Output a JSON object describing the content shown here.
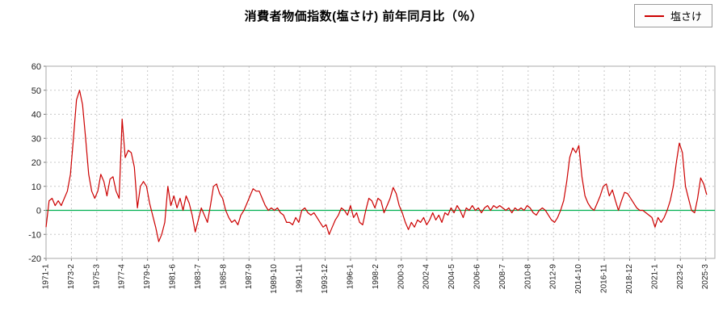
{
  "title": "消費者物価指数(塩さけ) 前年同月比（％）",
  "legend": {
    "label": "塩さけ"
  },
  "colors": {
    "series": "#cc0000",
    "zero_line": "#00b050",
    "grid": "#c8c8c8",
    "axis_border": "#aaaaaa",
    "background": "#ffffff",
    "text": "#222222"
  },
  "chart_data": {
    "type": "line",
    "title": "消費者物価指数(塩さけ) 前年同月比（％）",
    "series_name": "塩さけ",
    "unit": "%",
    "ylim": [
      -20,
      60
    ],
    "y_ticks": [
      60,
      50,
      40,
      30,
      20,
      10,
      0,
      -10,
      -20
    ],
    "x_tick_labels": [
      "1971-1",
      "1973-2",
      "1975-3",
      "1977-4",
      "1979-5",
      "1981-6",
      "1983-7",
      "1985-8",
      "1987-9",
      "1989-10",
      "1991-11",
      "1993-12",
      "1996-1",
      "1998-2",
      "2000-3",
      "2002-4",
      "2004-5",
      "2006-6",
      "2008-7",
      "2010-8",
      "2012-9",
      "2014-10",
      "2016-11",
      "2018-12",
      "2021-1",
      "2023-2",
      "2025-3"
    ],
    "x_tick_interval_months": 25,
    "x_start": "1971-01",
    "x_interval_months": 3,
    "grid": true,
    "legend_position": "top-right",
    "zero_line": true,
    "values": [
      -7,
      4,
      5,
      2,
      4,
      2,
      5,
      8,
      15,
      30,
      46,
      50,
      44,
      30,
      15,
      8,
      5,
      8,
      15,
      12,
      6,
      13,
      14,
      8,
      5,
      38,
      22,
      25,
      24,
      18,
      1,
      10,
      12,
      10,
      3,
      -2,
      -7,
      -13,
      -10,
      -5,
      10,
      2,
      6,
      1,
      5,
      0,
      6,
      3,
      -2,
      -9,
      -4,
      1,
      -2,
      -5,
      2,
      10,
      11,
      7,
      5,
      0,
      -3,
      -5,
      -4,
      -6,
      -2,
      0,
      3,
      6,
      9,
      8,
      8,
      5,
      2,
      0,
      1,
      0,
      1,
      -1,
      -2,
      -5,
      -5,
      -6,
      -3,
      -5,
      0,
      1,
      -1,
      -2,
      -1,
      -3,
      -5,
      -7,
      -6,
      -10,
      -7,
      -4,
      -2,
      1,
      0,
      -2,
      2,
      -3,
      -1,
      -5,
      -6,
      0,
      5,
      4,
      1,
      5,
      4,
      -1,
      2,
      5,
      9.5,
      7,
      2,
      -1,
      -5,
      -8,
      -5,
      -7,
      -4,
      -5,
      -3,
      -6,
      -4,
      -1,
      -4,
      -2,
      -5,
      -1,
      -2,
      1,
      -1,
      2,
      0,
      -3,
      1,
      0,
      2,
      0,
      1,
      -1,
      1,
      2,
      0,
      2,
      1,
      2,
      1,
      0,
      1,
      -1,
      1,
      0,
      1,
      0,
      2,
      1,
      -1,
      -2,
      0,
      1,
      0,
      -2,
      -4,
      -5,
      -3,
      0,
      4,
      12,
      22,
      26,
      24,
      27,
      14,
      6,
      3,
      1,
      0,
      3,
      6,
      10,
      11,
      6,
      8.5,
      4,
      0,
      4,
      7.5,
      7,
      5,
      3,
      1,
      0,
      0,
      -1,
      -2,
      -3,
      -7,
      -3,
      -5,
      -3,
      0,
      4,
      10,
      20,
      28,
      24,
      10,
      5,
      0,
      -1,
      5,
      13.5,
      11,
      6.5
    ]
  }
}
